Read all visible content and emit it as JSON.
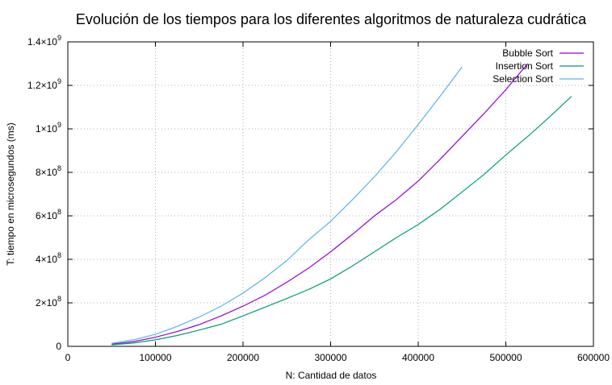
{
  "chart_data": {
    "type": "line",
    "title": "Evolución de los tiempos para los diferentes algoritmos de naturaleza cudrática",
    "xlabel": "N: Cantidad de datos",
    "ylabel": "T: tiempo en microsegundos (ms)",
    "xlim": [
      0,
      600000
    ],
    "ylim": [
      0,
      1400000000
    ],
    "grid": true,
    "legend_position": "top-right",
    "x_ticks": [
      {
        "value": 0,
        "label": "0"
      },
      {
        "value": 100000,
        "label": "100000"
      },
      {
        "value": 200000,
        "label": "200000"
      },
      {
        "value": 300000,
        "label": "300000"
      },
      {
        "value": 400000,
        "label": "400000"
      },
      {
        "value": 500000,
        "label": "500000"
      },
      {
        "value": 600000,
        "label": "600000"
      }
    ],
    "y_ticks": [
      {
        "value": 0,
        "mant": "0",
        "exp": ""
      },
      {
        "value": 200000000,
        "mant": "2×10",
        "exp": "8"
      },
      {
        "value": 400000000,
        "mant": "4×10",
        "exp": "8"
      },
      {
        "value": 600000000,
        "mant": "6×10",
        "exp": "8"
      },
      {
        "value": 800000000,
        "mant": "8×10",
        "exp": "8"
      },
      {
        "value": 1000000000,
        "mant": "1×10",
        "exp": "9"
      },
      {
        "value": 1200000000,
        "mant": "1.2×10",
        "exp": "9"
      },
      {
        "value": 1400000000,
        "mant": "1.4×10",
        "exp": "9"
      }
    ],
    "series": [
      {
        "name": "Bubble Sort",
        "color": "#9400d3",
        "points": [
          [
            50000,
            10000000
          ],
          [
            75000,
            22000000
          ],
          [
            100000,
            42000000
          ],
          [
            125000,
            68000000
          ],
          [
            150000,
            100000000
          ],
          [
            175000,
            140000000
          ],
          [
            200000,
            185000000
          ],
          [
            225000,
            235000000
          ],
          [
            250000,
            295000000
          ],
          [
            275000,
            360000000
          ],
          [
            300000,
            435000000
          ],
          [
            325000,
            515000000
          ],
          [
            350000,
            600000000
          ],
          [
            375000,
            675000000
          ],
          [
            400000,
            760000000
          ],
          [
            425000,
            860000000
          ],
          [
            450000,
            965000000
          ],
          [
            475000,
            1070000000
          ],
          [
            500000,
            1180000000
          ],
          [
            525000,
            1300000000
          ]
        ]
      },
      {
        "name": "Insertion Sort",
        "color": "#009e73",
        "points": [
          [
            50000,
            7000000
          ],
          [
            75000,
            15000000
          ],
          [
            100000,
            30000000
          ],
          [
            125000,
            50000000
          ],
          [
            150000,
            75000000
          ],
          [
            175000,
            102000000
          ],
          [
            200000,
            140000000
          ],
          [
            225000,
            180000000
          ],
          [
            250000,
            220000000
          ],
          [
            275000,
            262000000
          ],
          [
            300000,
            310000000
          ],
          [
            325000,
            370000000
          ],
          [
            350000,
            435000000
          ],
          [
            375000,
            500000000
          ],
          [
            400000,
            560000000
          ],
          [
            425000,
            630000000
          ],
          [
            450000,
            710000000
          ],
          [
            475000,
            790000000
          ],
          [
            500000,
            880000000
          ],
          [
            525000,
            965000000
          ],
          [
            550000,
            1055000000
          ],
          [
            575000,
            1150000000
          ]
        ]
      },
      {
        "name": "Selection Sort",
        "color": "#56b4e9",
        "points": [
          [
            50000,
            14000000
          ],
          [
            75000,
            30000000
          ],
          [
            100000,
            55000000
          ],
          [
            125000,
            92000000
          ],
          [
            150000,
            135000000
          ],
          [
            175000,
            185000000
          ],
          [
            200000,
            245000000
          ],
          [
            225000,
            315000000
          ],
          [
            250000,
            395000000
          ],
          [
            275000,
            490000000
          ],
          [
            300000,
            575000000
          ],
          [
            325000,
            675000000
          ],
          [
            350000,
            780000000
          ],
          [
            375000,
            895000000
          ],
          [
            400000,
            1020000000
          ],
          [
            425000,
            1150000000
          ],
          [
            450000,
            1285000000
          ]
        ]
      }
    ]
  }
}
